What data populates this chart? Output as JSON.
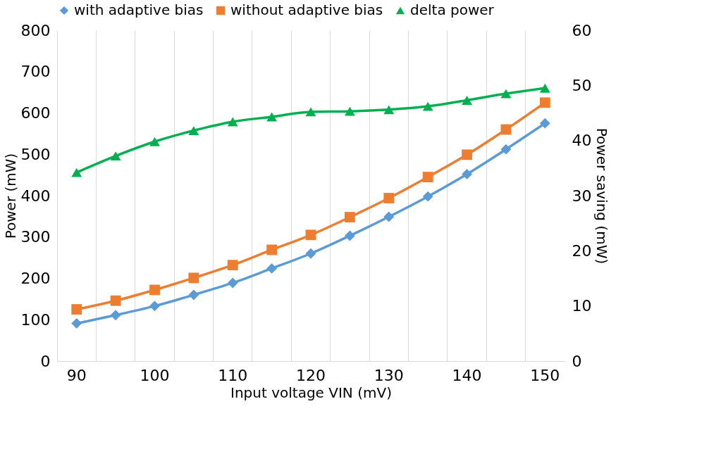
{
  "chart_data": {
    "type": "line",
    "categories": [
      "90",
      null,
      "100",
      null,
      "110",
      null,
      "120",
      null,
      "130",
      null,
      "140",
      null,
      "150"
    ],
    "xlabel": "Input voltage VIN (mV)",
    "ylabel": "Power (mW)",
    "y2label": "Power saving (mW)",
    "ylim": [
      0,
      800
    ],
    "yticks": [
      0,
      100,
      200,
      300,
      400,
      500,
      600,
      700,
      800
    ],
    "y2lim": [
      0,
      60
    ],
    "y2ticks": [
      0,
      10,
      20,
      30,
      40,
      50,
      60
    ],
    "grid": "x",
    "legend": "top",
    "series": [
      {
        "name": "with adaptive bias",
        "color": "#5b9bd5",
        "marker": "diamond",
        "values": [
          91,
          111,
          133,
          160,
          189,
          224,
          260,
          303,
          349,
          398,
          452,
          512,
          575
        ]
      },
      {
        "name": "without adaptive bias",
        "color": "#ed7d31",
        "marker": "square",
        "values": [
          125,
          146,
          172,
          201,
          232,
          269,
          305,
          348,
          394,
          445,
          499,
          560,
          625
        ]
      },
      {
        "name": "delta power",
        "color": "#00b050",
        "marker": "triangle",
        "axis": "y2",
        "values": [
          34.2,
          37.2,
          39.8,
          41.8,
          43.4,
          44.3,
          45.2,
          45.3,
          45.6,
          46.2,
          47.3,
          48.5,
          49.5
        ]
      }
    ]
  }
}
